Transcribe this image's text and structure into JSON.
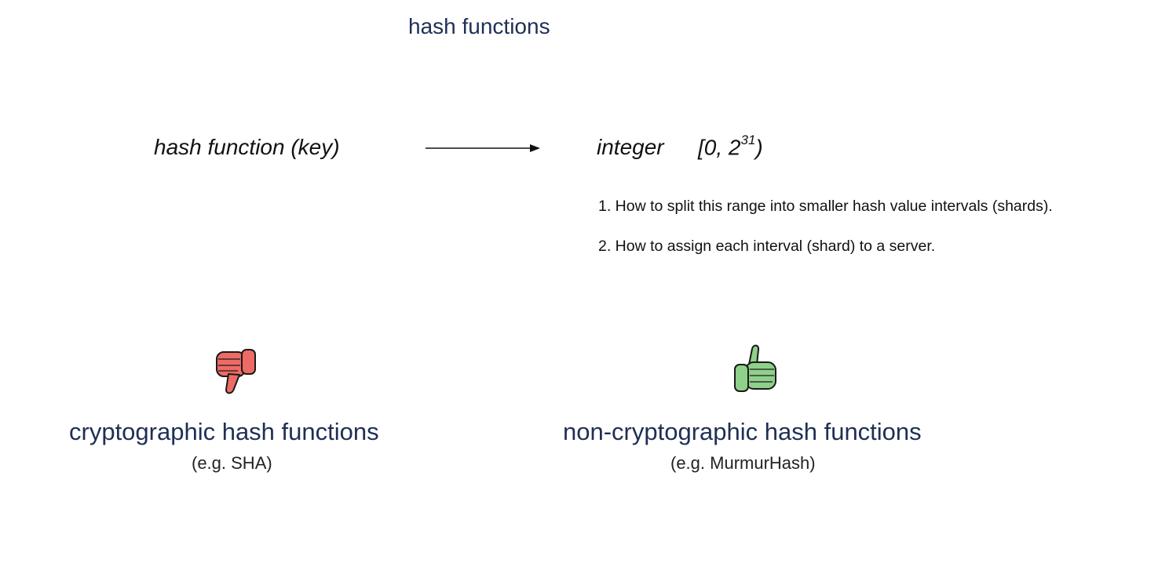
{
  "title": "hash functions",
  "mapping": {
    "input": "hash function (key)",
    "output": "integer",
    "range_prefix": "[0, 2",
    "range_exponent": "31",
    "range_suffix": ")"
  },
  "steps": [
    "1. How to split this range into smaller hash value intervals (shards).",
    "2. How to assign each interval (shard) to a server."
  ],
  "options": {
    "cryptographic": {
      "label": "cryptographic hash functions",
      "example": "(e.g. SHA)",
      "icon": "thumbs-down-icon",
      "color": "#ee6b65"
    },
    "non_cryptographic": {
      "label": "non-cryptographic hash functions",
      "example": "(e.g. MurmurHash)",
      "icon": "thumbs-up-icon",
      "color": "#8fd08a"
    }
  },
  "colors": {
    "title": "#1f2f55",
    "text": "#111111",
    "outline": "#1a1a1a"
  }
}
